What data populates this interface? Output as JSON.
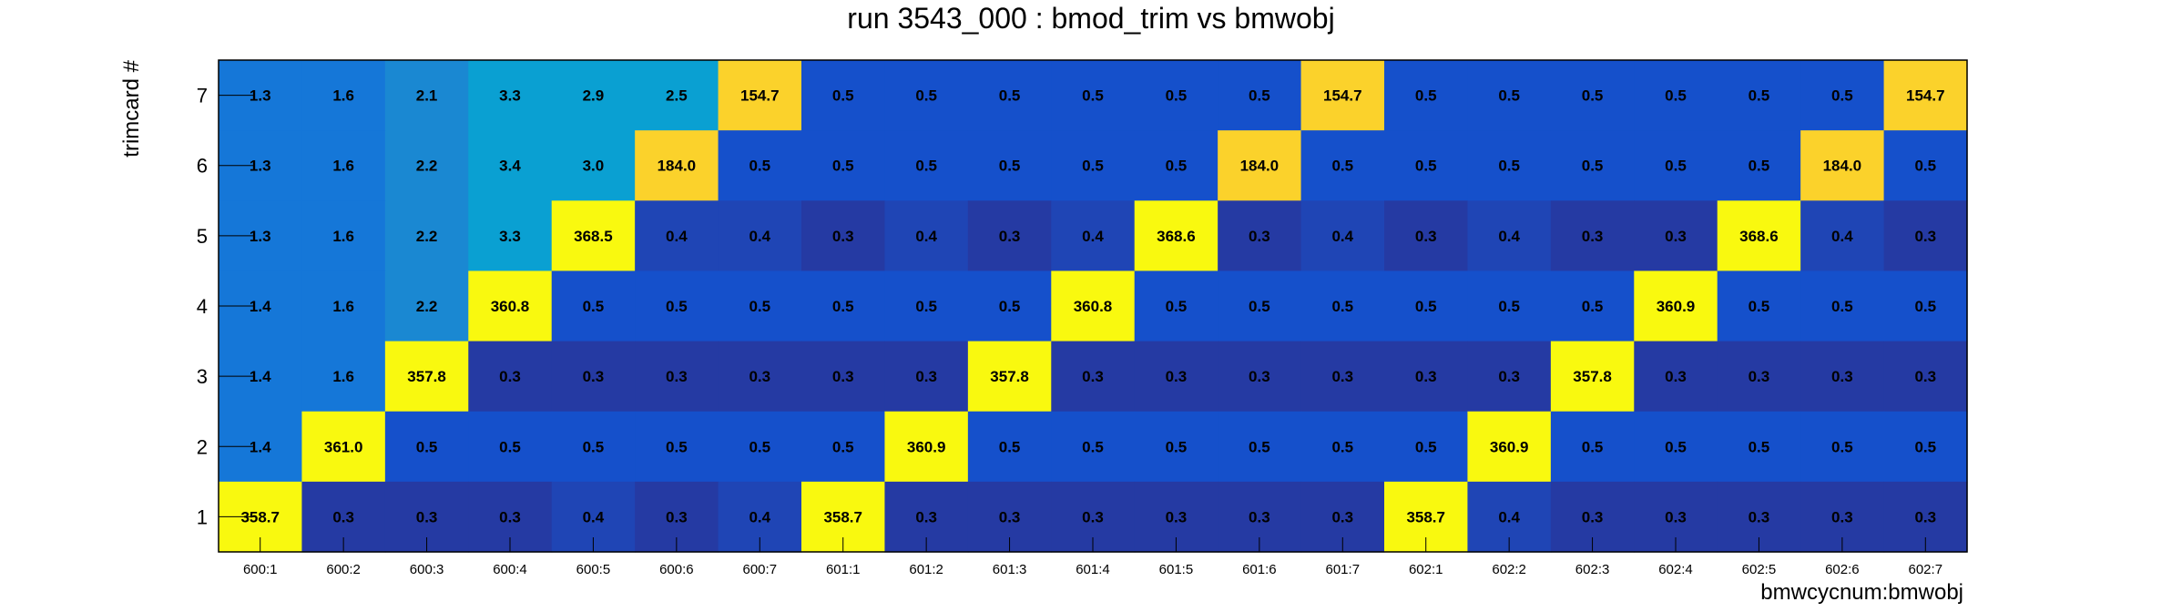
{
  "chart_data": {
    "type": "heatmap",
    "title": "run 3543_000 : bmod_trim vs bmwobj",
    "xlabel": "bmwcycnum:bmwobj",
    "ylabel": "trimcard #",
    "x_categories": [
      "600:1",
      "600:2",
      "600:3",
      "600:4",
      "600:5",
      "600:6",
      "600:7",
      "601:1",
      "601:2",
      "601:3",
      "601:4",
      "601:5",
      "601:6",
      "601:7",
      "602:1",
      "602:2",
      "602:3",
      "602:4",
      "602:5",
      "602:6",
      "602:7"
    ],
    "y_categories": [
      "1",
      "2",
      "3",
      "4",
      "5",
      "6",
      "7"
    ],
    "rows": [
      {
        "y": "7",
        "values": [
          1.3,
          1.6,
          2.1,
          3.3,
          2.9,
          2.5,
          154.7,
          0.5,
          0.5,
          0.5,
          0.5,
          0.5,
          0.5,
          154.7,
          0.5,
          0.5,
          0.5,
          0.5,
          0.5,
          0.5,
          154.7
        ]
      },
      {
        "y": "6",
        "values": [
          1.3,
          1.6,
          2.2,
          3.4,
          3.0,
          184.0,
          0.5,
          0.5,
          0.5,
          0.5,
          0.5,
          0.5,
          184.0,
          0.5,
          0.5,
          0.5,
          0.5,
          0.5,
          0.5,
          184.0,
          0.5
        ]
      },
      {
        "y": "5",
        "values": [
          1.3,
          1.6,
          2.2,
          3.3,
          368.5,
          0.4,
          0.4,
          0.3,
          0.4,
          0.3,
          0.4,
          368.6,
          0.3,
          0.4,
          0.3,
          0.4,
          0.3,
          0.3,
          368.6,
          0.4,
          0.3
        ]
      },
      {
        "y": "4",
        "values": [
          1.4,
          1.6,
          2.2,
          360.8,
          0.5,
          0.5,
          0.5,
          0.5,
          0.5,
          0.5,
          360.8,
          0.5,
          0.5,
          0.5,
          0.5,
          0.5,
          0.5,
          360.9,
          0.5,
          0.5,
          0.5
        ]
      },
      {
        "y": "3",
        "values": [
          1.4,
          1.6,
          357.8,
          0.3,
          0.3,
          0.3,
          0.3,
          0.3,
          0.3,
          357.8,
          0.3,
          0.3,
          0.3,
          0.3,
          0.3,
          0.3,
          357.8,
          0.3,
          0.3,
          0.3,
          0.3
        ]
      },
      {
        "y": "2",
        "values": [
          1.4,
          361.0,
          0.5,
          0.5,
          0.5,
          0.5,
          0.5,
          0.5,
          360.9,
          0.5,
          0.5,
          0.5,
          0.5,
          0.5,
          0.5,
          360.9,
          0.5,
          0.5,
          0.5,
          0.5,
          0.5
        ]
      },
      {
        "y": "1",
        "values": [
          358.7,
          0.3,
          0.3,
          0.3,
          0.4,
          0.3,
          0.4,
          358.7,
          0.3,
          0.3,
          0.3,
          0.3,
          0.3,
          0.3,
          358.7,
          0.4,
          0.3,
          0.3,
          0.3,
          0.3,
          0.3
        ]
      }
    ],
    "grid": false,
    "legend": "none",
    "colors": {
      "high": "#f9f90f",
      "mid_high": "#fbd22b",
      "mid_1": "#0aa0d2",
      "mid_2": "#1a88d2",
      "mid_3": "#1577d8",
      "low_05": "#1550cb",
      "low_04": "#1f45b5",
      "low_03": "#253aa3"
    }
  }
}
